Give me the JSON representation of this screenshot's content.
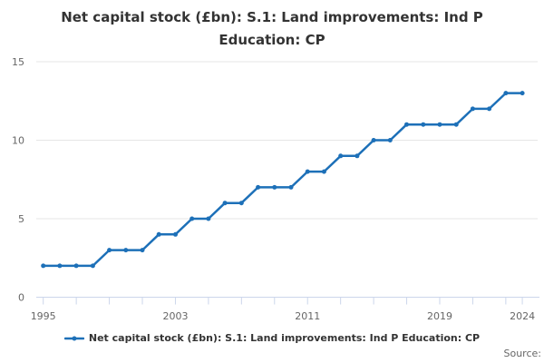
{
  "title": {
    "line1": "Net capital stock (£bn): S.1: Land improvements: Ind P",
    "line2": "Education: CP"
  },
  "legend": {
    "label": "Net capital stock (£bn): S.1: Land improvements: Ind P Education: CP"
  },
  "source": {
    "label": "Source:"
  },
  "colors": {
    "line": "#1d70b8",
    "grid": "#e6e6e6",
    "axis": "#ccd6eb",
    "tick_label": "#666666",
    "title": "#333333",
    "legend_text": "#333333",
    "source_text": "#666666"
  },
  "chart_data": {
    "type": "line",
    "title": "Net capital stock (£bn): S.1: Land improvements: Ind P Education: CP",
    "xlabel": "",
    "ylabel": "",
    "x": [
      1995,
      1996,
      1997,
      1998,
      1999,
      2000,
      2001,
      2002,
      2003,
      2004,
      2005,
      2006,
      2007,
      2008,
      2009,
      2010,
      2011,
      2012,
      2013,
      2014,
      2015,
      2016,
      2017,
      2018,
      2019,
      2020,
      2021,
      2022,
      2023,
      2024
    ],
    "series": [
      {
        "name": "Net capital stock (£bn): S.1: Land improvements: Ind P Education: CP",
        "values": [
          2,
          2,
          2,
          2,
          3,
          3,
          3,
          4,
          4,
          5,
          5,
          6,
          6,
          7,
          7,
          7,
          8,
          8,
          9,
          9,
          10,
          10,
          11,
          11,
          11,
          11,
          12,
          12,
          13,
          13
        ]
      }
    ],
    "ylim": [
      0,
      15
    ],
    "yticks": [
      0,
      5,
      10,
      15
    ],
    "xticks": [
      1995,
      1997,
      1999,
      2001,
      2003,
      2005,
      2007,
      2009,
      2011,
      2013,
      2015,
      2017,
      2019,
      2021,
      2023,
      2024
    ],
    "xticks_labeled": [
      1995,
      2003,
      2011,
      2019,
      2024
    ],
    "grid": "horizontal",
    "markers": true,
    "legend_position": "bottom"
  }
}
